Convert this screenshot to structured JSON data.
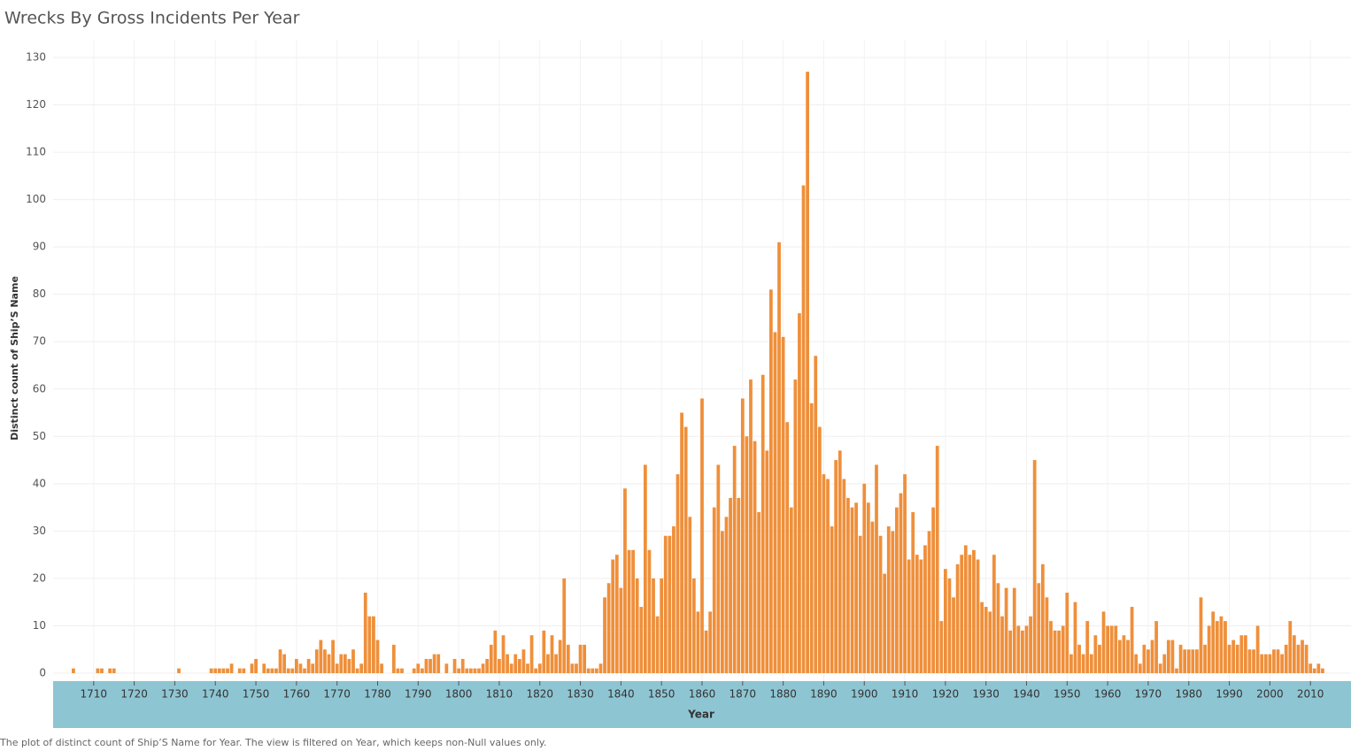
{
  "chart_data": {
    "type": "bar",
    "title": "Wrecks By Gross Incidents Per Year",
    "x_label": "Year",
    "y_label": "Distinct count of Ship’S Name",
    "caption": "The plot of distinct count of Ship’S Name for Year. The view is filtered on Year, which keeps non-Null values only.",
    "color": "#ef8f3a",
    "x": [
      1705,
      1711,
      1712,
      1714,
      1715,
      1731,
      1739,
      1740,
      1741,
      1742,
      1743,
      1744,
      1746,
      1747,
      1749,
      1750,
      1752,
      1753,
      1754,
      1755,
      1756,
      1757,
      1758,
      1759,
      1760,
      1761,
      1762,
      1763,
      1764,
      1765,
      1766,
      1767,
      1768,
      1769,
      1770,
      1771,
      1772,
      1773,
      1774,
      1775,
      1776,
      1777,
      1778,
      1779,
      1780,
      1781,
      1784,
      1785,
      1786,
      1789,
      1790,
      1791,
      1792,
      1793,
      1794,
      1795,
      1797,
      1799,
      1800,
      1801,
      1802,
      1803,
      1804,
      1805,
      1806,
      1807,
      1808,
      1809,
      1810,
      1811,
      1812,
      1813,
      1814,
      1815,
      1816,
      1817,
      1818,
      1819,
      1820,
      1821,
      1822,
      1823,
      1824,
      1825,
      1826,
      1827,
      1828,
      1829,
      1830,
      1831,
      1832,
      1833,
      1834,
      1835,
      1836,
      1837,
      1838,
      1839,
      1840,
      1841,
      1842,
      1843,
      1844,
      1845,
      1846,
      1847,
      1848,
      1849,
      1850,
      1851,
      1852,
      1853,
      1854,
      1855,
      1856,
      1857,
      1858,
      1859,
      1860,
      1861,
      1862,
      1863,
      1864,
      1865,
      1866,
      1867,
      1868,
      1869,
      1870,
      1871,
      1872,
      1873,
      1874,
      1875,
      1876,
      1877,
      1878,
      1879,
      1880,
      1881,
      1882,
      1883,
      1884,
      1885,
      1886,
      1887,
      1888,
      1889,
      1890,
      1891,
      1892,
      1893,
      1894,
      1895,
      1896,
      1897,
      1898,
      1899,
      1900,
      1901,
      1902,
      1903,
      1904,
      1905,
      1906,
      1907,
      1908,
      1909,
      1910,
      1911,
      1912,
      1913,
      1914,
      1915,
      1916,
      1917,
      1918,
      1919,
      1920,
      1921,
      1922,
      1923,
      1924,
      1925,
      1926,
      1927,
      1928,
      1929,
      1930,
      1931,
      1932,
      1933,
      1934,
      1935,
      1936,
      1937,
      1938,
      1939,
      1940,
      1941,
      1942,
      1943,
      1944,
      1945,
      1946,
      1947,
      1948,
      1949,
      1950,
      1951,
      1952,
      1953,
      1954,
      1955,
      1956,
      1957,
      1958,
      1959,
      1960,
      1961,
      1962,
      1963,
      1964,
      1965,
      1966,
      1967,
      1968,
      1969,
      1970,
      1971,
      1972,
      1973,
      1974,
      1975,
      1976,
      1977,
      1978,
      1979,
      1980,
      1981,
      1982,
      1983,
      1984,
      1985,
      1986,
      1987,
      1988,
      1989,
      1990,
      1991,
      1992,
      1993,
      1994,
      1995,
      1996,
      1997,
      1998,
      1999,
      2000,
      2001,
      2002,
      2003,
      2004,
      2005,
      2006,
      2007,
      2008,
      2009,
      2010,
      2011,
      2012,
      2013
    ],
    "values": [
      1,
      1,
      1,
      1,
      1,
      1,
      1,
      1,
      1,
      1,
      1,
      2,
      1,
      1,
      2,
      3,
      2,
      1,
      1,
      1,
      5,
      4,
      1,
      1,
      3,
      2,
      1,
      3,
      2,
      5,
      7,
      5,
      4,
      7,
      2,
      4,
      4,
      3,
      5,
      1,
      2,
      17,
      12,
      12,
      7,
      2,
      6,
      1,
      1,
      1,
      2,
      1,
      3,
      3,
      4,
      4,
      2,
      3,
      1,
      3,
      1,
      1,
      1,
      1,
      2,
      3,
      6,
      9,
      3,
      8,
      4,
      2,
      4,
      3,
      5,
      2,
      8,
      1,
      2,
      9,
      4,
      8,
      4,
      7,
      20,
      6,
      2,
      2,
      6,
      6,
      1,
      1,
      1,
      2,
      16,
      19,
      24,
      25,
      18,
      39,
      26,
      26,
      20,
      14,
      44,
      26,
      20,
      12,
      20,
      29,
      29,
      31,
      42,
      55,
      52,
      33,
      20,
      13,
      58,
      9,
      13,
      35,
      44,
      30,
      33,
      37,
      48,
      37,
      58,
      50,
      62,
      49,
      34,
      63,
      47,
      81,
      72,
      91,
      71,
      53,
      35,
      62,
      76,
      103,
      127,
      57,
      67,
      52,
      42,
      41,
      31,
      45,
      47,
      41,
      37,
      35,
      36,
      29,
      40,
      36,
      32,
      44,
      29,
      21,
      31,
      30,
      35,
      38,
      42,
      24,
      34,
      25,
      24,
      27,
      30,
      35,
      48,
      11,
      22,
      20,
      16,
      23,
      25,
      27,
      25,
      26,
      24,
      15,
      14,
      13,
      25,
      19,
      12,
      18,
      9,
      18,
      10,
      9,
      10,
      12,
      45,
      19,
      23,
      16,
      11,
      9,
      9,
      10,
      17,
      4,
      15,
      6,
      4,
      11,
      4,
      8,
      6,
      13,
      10,
      10,
      10,
      7,
      8,
      7,
      14,
      4,
      2,
      6,
      5,
      7,
      11,
      2,
      4,
      7,
      7,
      1,
      6,
      5,
      5,
      5,
      5,
      16,
      6,
      10,
      13,
      11,
      12,
      11,
      6,
      7,
      6,
      8,
      8,
      5,
      5,
      10,
      4,
      4,
      4,
      5,
      5,
      4,
      6,
      11,
      8,
      6,
      7,
      6,
      2,
      1,
      2,
      1
    ],
    "xlim": [
      1700,
      2020
    ],
    "xticks": [
      1710,
      1720,
      1730,
      1740,
      1750,
      1760,
      1770,
      1780,
      1790,
      1800,
      1810,
      1820,
      1830,
      1840,
      1850,
      1860,
      1870,
      1880,
      1890,
      1900,
      1910,
      1920,
      1930,
      1940,
      1950,
      1960,
      1970,
      1980,
      1990,
      2000,
      2010
    ],
    "ylim": [
      0,
      130
    ],
    "yticks": [
      0,
      10,
      20,
      30,
      40,
      50,
      60,
      70,
      80,
      90,
      100,
      110,
      120,
      130
    ],
    "grid": true
  }
}
